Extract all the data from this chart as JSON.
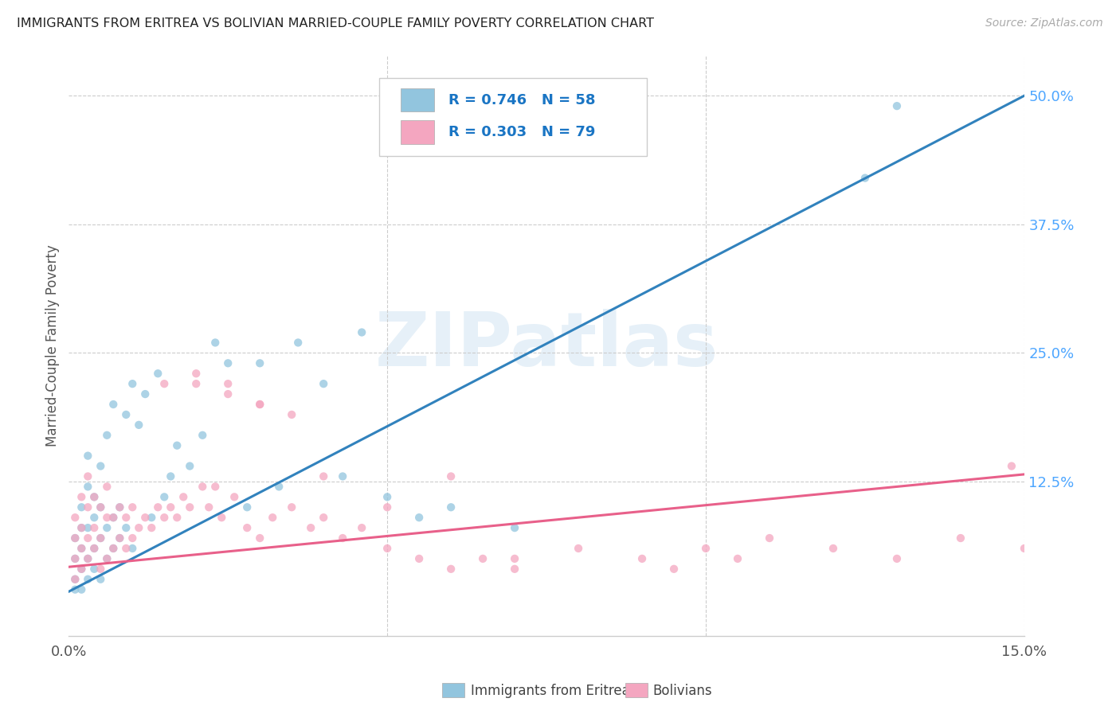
{
  "title": "IMMIGRANTS FROM ERITREA VS BOLIVIAN MARRIED-COUPLE FAMILY POVERTY CORRELATION CHART",
  "source": "Source: ZipAtlas.com",
  "ylabel": "Married-Couple Family Poverty",
  "xlim": [
    0.0,
    0.15
  ],
  "ylim": [
    -0.025,
    0.54
  ],
  "right_ytick_labels": [
    "50.0%",
    "37.5%",
    "25.0%",
    "12.5%"
  ],
  "right_ytick_positions": [
    0.5,
    0.375,
    0.25,
    0.125
  ],
  "blue_R": 0.746,
  "blue_N": 58,
  "pink_R": 0.303,
  "pink_N": 79,
  "blue_color": "#92c5de",
  "pink_color": "#f4a6c0",
  "blue_line_color": "#3182bd",
  "pink_line_color": "#e8608a",
  "blue_line_x0": 0.0,
  "blue_line_y0": 0.018,
  "blue_line_x1": 0.15,
  "blue_line_y1": 0.5,
  "pink_line_x0": 0.0,
  "pink_line_y0": 0.042,
  "pink_line_x1": 0.15,
  "pink_line_y1": 0.132,
  "watermark": "ZIPatlas",
  "legend_label_blue": "Immigrants from Eritrea",
  "legend_label_pink": "Bolivians",
  "blue_scatter_x": [
    0.001,
    0.001,
    0.001,
    0.001,
    0.002,
    0.002,
    0.002,
    0.002,
    0.002,
    0.003,
    0.003,
    0.003,
    0.003,
    0.003,
    0.004,
    0.004,
    0.004,
    0.004,
    0.005,
    0.005,
    0.005,
    0.005,
    0.006,
    0.006,
    0.006,
    0.007,
    0.007,
    0.007,
    0.008,
    0.008,
    0.009,
    0.009,
    0.01,
    0.01,
    0.011,
    0.012,
    0.013,
    0.014,
    0.015,
    0.016,
    0.017,
    0.019,
    0.021,
    0.023,
    0.025,
    0.028,
    0.03,
    0.033,
    0.036,
    0.04,
    0.043,
    0.046,
    0.05,
    0.055,
    0.06,
    0.07,
    0.125,
    0.13
  ],
  "blue_scatter_y": [
    0.02,
    0.03,
    0.05,
    0.07,
    0.02,
    0.04,
    0.06,
    0.08,
    0.1,
    0.03,
    0.05,
    0.08,
    0.12,
    0.15,
    0.04,
    0.06,
    0.09,
    0.11,
    0.03,
    0.07,
    0.1,
    0.14,
    0.05,
    0.08,
    0.17,
    0.06,
    0.09,
    0.2,
    0.07,
    0.1,
    0.08,
    0.19,
    0.06,
    0.22,
    0.18,
    0.21,
    0.09,
    0.23,
    0.11,
    0.13,
    0.16,
    0.14,
    0.17,
    0.26,
    0.24,
    0.1,
    0.24,
    0.12,
    0.26,
    0.22,
    0.13,
    0.27,
    0.11,
    0.09,
    0.1,
    0.08,
    0.42,
    0.49
  ],
  "pink_scatter_x": [
    0.001,
    0.001,
    0.001,
    0.001,
    0.002,
    0.002,
    0.002,
    0.002,
    0.003,
    0.003,
    0.003,
    0.003,
    0.004,
    0.004,
    0.004,
    0.005,
    0.005,
    0.005,
    0.006,
    0.006,
    0.006,
    0.007,
    0.007,
    0.008,
    0.008,
    0.009,
    0.009,
    0.01,
    0.01,
    0.011,
    0.012,
    0.013,
    0.014,
    0.015,
    0.016,
    0.017,
    0.018,
    0.019,
    0.02,
    0.021,
    0.022,
    0.023,
    0.024,
    0.026,
    0.028,
    0.03,
    0.032,
    0.035,
    0.038,
    0.04,
    0.043,
    0.046,
    0.05,
    0.055,
    0.06,
    0.065,
    0.07,
    0.08,
    0.09,
    0.095,
    0.1,
    0.105,
    0.11,
    0.12,
    0.13,
    0.14,
    0.148,
    0.15,
    0.06,
    0.07,
    0.025,
    0.03,
    0.035,
    0.015,
    0.02,
    0.025,
    0.03,
    0.04,
    0.05
  ],
  "pink_scatter_y": [
    0.03,
    0.05,
    0.07,
    0.09,
    0.04,
    0.06,
    0.08,
    0.11,
    0.05,
    0.07,
    0.1,
    0.13,
    0.06,
    0.08,
    0.11,
    0.04,
    0.07,
    0.1,
    0.05,
    0.09,
    0.12,
    0.06,
    0.09,
    0.07,
    0.1,
    0.06,
    0.09,
    0.07,
    0.1,
    0.08,
    0.09,
    0.08,
    0.1,
    0.09,
    0.1,
    0.09,
    0.11,
    0.1,
    0.22,
    0.12,
    0.1,
    0.12,
    0.09,
    0.11,
    0.08,
    0.07,
    0.09,
    0.1,
    0.08,
    0.09,
    0.07,
    0.08,
    0.06,
    0.05,
    0.04,
    0.05,
    0.04,
    0.06,
    0.05,
    0.04,
    0.06,
    0.05,
    0.07,
    0.06,
    0.05,
    0.07,
    0.14,
    0.06,
    0.13,
    0.05,
    0.22,
    0.2,
    0.19,
    0.22,
    0.23,
    0.21,
    0.2,
    0.13,
    0.1
  ]
}
